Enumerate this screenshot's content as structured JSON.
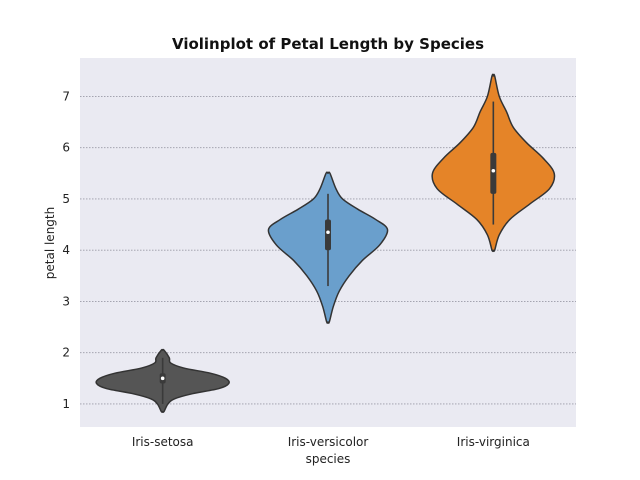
{
  "chart_data": {
    "type": "violin",
    "title": "Violinplot of Petal Length by Species",
    "xlabel": "species",
    "ylabel": "petal length",
    "ylim": [
      0.55,
      7.75
    ],
    "yticks": [
      1,
      2,
      3,
      4,
      5,
      6,
      7
    ],
    "grid": "horizontal-dotted",
    "categories": [
      "Iris-setosa",
      "Iris-versicolor",
      "Iris-virginica"
    ],
    "colors": {
      "Iris-setosa": "#555555",
      "Iris-versicolor": "#6a9fcc",
      "Iris-virginica": "#e58428",
      "plot_background": "#eaeaf2",
      "grid": "#9a9aa6",
      "outline": "#333333"
    },
    "series": [
      {
        "category": "Iris-setosa",
        "min": 1.0,
        "q1": 1.4,
        "median": 1.5,
        "q3": 1.6,
        "max": 1.9,
        "density": [
          [
            0.85,
            0.02
          ],
          [
            1.0,
            0.08
          ],
          [
            1.1,
            0.18
          ],
          [
            1.2,
            0.45
          ],
          [
            1.3,
            0.85
          ],
          [
            1.4,
            1.0
          ],
          [
            1.5,
            0.95
          ],
          [
            1.6,
            0.72
          ],
          [
            1.7,
            0.32
          ],
          [
            1.8,
            0.12
          ],
          [
            1.9,
            0.1
          ],
          [
            2.05,
            0.02
          ]
        ]
      },
      {
        "category": "Iris-versicolor",
        "min": 3.3,
        "q1": 4.0,
        "median": 4.35,
        "q3": 4.6,
        "max": 5.1,
        "density": [
          [
            2.6,
            0.02
          ],
          [
            2.9,
            0.08
          ],
          [
            3.2,
            0.17
          ],
          [
            3.5,
            0.32
          ],
          [
            3.8,
            0.52
          ],
          [
            4.1,
            0.78
          ],
          [
            4.4,
            0.9
          ],
          [
            4.6,
            0.72
          ],
          [
            4.8,
            0.45
          ],
          [
            5.0,
            0.22
          ],
          [
            5.2,
            0.12
          ],
          [
            5.5,
            0.03
          ]
        ]
      },
      {
        "category": "Iris-virginica",
        "min": 4.5,
        "q1": 5.1,
        "median": 5.55,
        "q3": 5.9,
        "max": 6.9,
        "density": [
          [
            4.0,
            0.02
          ],
          [
            4.3,
            0.09
          ],
          [
            4.6,
            0.25
          ],
          [
            4.9,
            0.55
          ],
          [
            5.2,
            0.85
          ],
          [
            5.5,
            0.92
          ],
          [
            5.8,
            0.75
          ],
          [
            6.1,
            0.5
          ],
          [
            6.4,
            0.3
          ],
          [
            6.7,
            0.2
          ],
          [
            7.0,
            0.09
          ],
          [
            7.4,
            0.02
          ]
        ]
      }
    ]
  }
}
